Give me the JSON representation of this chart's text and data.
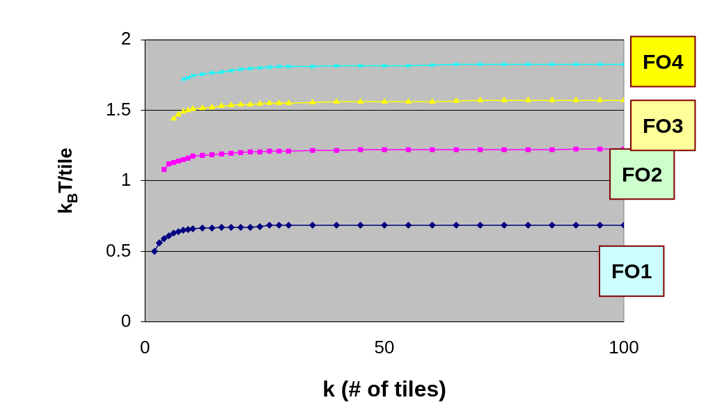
{
  "chart_data": {
    "type": "line",
    "ylabel": "k$_{B}$T/tile",
    "xlabel": "k (# of tiles)",
    "xlim": [
      0,
      100
    ],
    "xticks": [
      0,
      50,
      100
    ],
    "ylim": [
      0,
      2
    ],
    "yticks": [
      0,
      0.5,
      1,
      1.5,
      2
    ],
    "grid": "y",
    "legend": false,
    "series": [
      {
        "name": "FO1",
        "color": "#000080",
        "marker": "diamond",
        "x": [
          2,
          3,
          4,
          5,
          6,
          7,
          8,
          9,
          10,
          12,
          14,
          16,
          18,
          20,
          22,
          24,
          26,
          28,
          30,
          35,
          40,
          45,
          50,
          55,
          60,
          65,
          70,
          75,
          80,
          85,
          90,
          95,
          100
        ],
        "values": [
          0.5,
          0.56,
          0.59,
          0.61,
          0.63,
          0.64,
          0.65,
          0.655,
          0.66,
          0.665,
          0.665,
          0.67,
          0.67,
          0.67,
          0.67,
          0.675,
          0.685,
          0.685,
          0.685,
          0.685,
          0.685,
          0.685,
          0.685,
          0.685,
          0.685,
          0.685,
          0.685,
          0.685,
          0.685,
          0.685,
          0.685,
          0.685,
          0.685
        ]
      },
      {
        "name": "FO2",
        "color": "#ff00ff",
        "marker": "square",
        "x": [
          4,
          5,
          6,
          7,
          8,
          9,
          10,
          12,
          14,
          16,
          18,
          20,
          22,
          24,
          26,
          28,
          30,
          35,
          40,
          45,
          50,
          55,
          60,
          65,
          70,
          75,
          80,
          85,
          90,
          95,
          100
        ],
        "values": [
          1.08,
          1.12,
          1.13,
          1.14,
          1.15,
          1.16,
          1.175,
          1.18,
          1.185,
          1.19,
          1.195,
          1.2,
          1.205,
          1.205,
          1.21,
          1.21,
          1.21,
          1.215,
          1.215,
          1.22,
          1.22,
          1.22,
          1.22,
          1.22,
          1.22,
          1.22,
          1.22,
          1.22,
          1.225,
          1.225,
          1.225
        ]
      },
      {
        "name": "FO3",
        "color": "#ffff00",
        "marker": "triangle",
        "x": [
          6,
          7,
          8,
          9,
          10,
          12,
          14,
          16,
          18,
          20,
          22,
          24,
          26,
          28,
          30,
          35,
          40,
          45,
          50,
          55,
          60,
          65,
          70,
          75,
          80,
          85,
          90,
          95,
          100
        ],
        "values": [
          1.44,
          1.47,
          1.49,
          1.5,
          1.51,
          1.515,
          1.52,
          1.53,
          1.535,
          1.54,
          1.54,
          1.545,
          1.55,
          1.55,
          1.55,
          1.555,
          1.56,
          1.56,
          1.56,
          1.56,
          1.56,
          1.565,
          1.57,
          1.57,
          1.57,
          1.57,
          1.57,
          1.57,
          1.57
        ]
      },
      {
        "name": "FO4",
        "color": "#00ffff",
        "marker": "cross",
        "x": [
          8,
          9,
          10,
          12,
          14,
          16,
          18,
          20,
          22,
          24,
          26,
          28,
          30,
          35,
          40,
          45,
          50,
          55,
          60,
          65,
          70,
          75,
          80,
          85,
          90,
          95,
          100
        ],
        "values": [
          1.72,
          1.73,
          1.745,
          1.755,
          1.765,
          1.77,
          1.78,
          1.79,
          1.795,
          1.8,
          1.805,
          1.81,
          1.81,
          1.81,
          1.815,
          1.815,
          1.815,
          1.815,
          1.82,
          1.825,
          1.825,
          1.825,
          1.825,
          1.825,
          1.825,
          1.825,
          1.825
        ]
      }
    ]
  }
}
